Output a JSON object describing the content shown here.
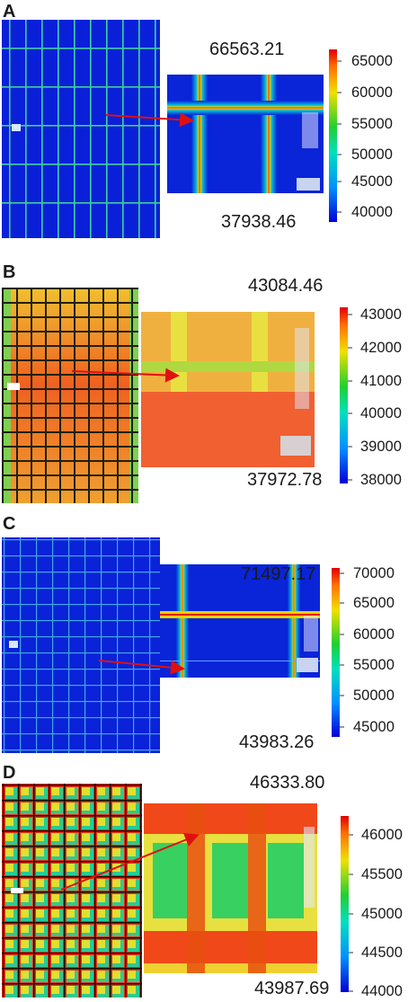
{
  "panels": [
    {
      "label": "A",
      "max_label": "66563.21",
      "min_label": "37938.46",
      "ticks": [
        "65000",
        "60000",
        "55000",
        "50000",
        "45000",
        "40000"
      ]
    },
    {
      "label": "B",
      "max_label": "43084.46",
      "min_label": "37972.78",
      "ticks": [
        "43000",
        "42000",
        "41000",
        "40000",
        "39000",
        "38000"
      ]
    },
    {
      "label": "C",
      "max_label": "71497.17",
      "min_label": "43983.26",
      "ticks": [
        "70000",
        "65000",
        "60000",
        "55000",
        "50000",
        "45000"
      ]
    },
    {
      "label": "D",
      "max_label": "46333.80",
      "min_label": "43987.69",
      "ticks": [
        "46000",
        "45500",
        "45000",
        "44500",
        "44000"
      ]
    }
  ],
  "colors": {
    "low": "#0a1ee6",
    "high": "#e81a10",
    "arrow": "#e01010"
  }
}
